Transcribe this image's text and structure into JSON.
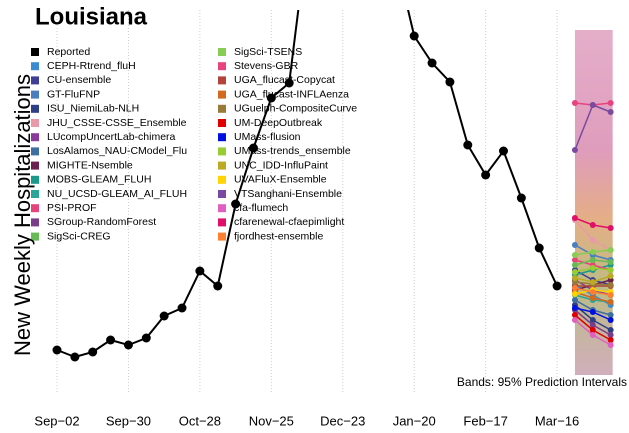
{
  "chart_data": {
    "type": "line",
    "title": "Louisiana",
    "y_label": "New Weekly Hospitalizations",
    "annotation": "Bands: 95% Prediction Intervals",
    "categories": [
      "Sep−02",
      null,
      null,
      null,
      "Sep−30",
      null,
      null,
      null,
      "Oct−28",
      null,
      null,
      null,
      "Nov−25",
      null,
      null,
      null,
      "Dec−23",
      null,
      null,
      null,
      "Jan−20",
      null,
      null,
      null,
      "Feb−17",
      null,
      null,
      null,
      "Mar−16",
      null,
      null,
      null
    ],
    "ylim": [
      0,
      370
    ],
    "grid": true,
    "prediction_band": {
      "lower": 5,
      "upper": 350
    },
    "series": [
      {
        "name": "Reported",
        "color": "#000000",
        "values": [
          30,
          23,
          28,
          40,
          35,
          42,
          64,
          72,
          109,
          94,
          176,
          232,
          282,
          297,
          440,
          null,
          null,
          null,
          null,
          420,
          344,
          317,
          298,
          235,
          205,
          229,
          182,
          132,
          94,
          null,
          null,
          null
        ]
      },
      {
        "name": "CEPH-Rtrend_fluH",
        "color": "#3a8bd0",
        "values": [
          null,
          null,
          null,
          null,
          null,
          null,
          null,
          null,
          null,
          null,
          null,
          null,
          null,
          null,
          null,
          null,
          null,
          null,
          null,
          null,
          null,
          null,
          null,
          null,
          null,
          null,
          null,
          null,
          null,
          95,
          85,
          75
        ]
      },
      {
        "name": "CU-ensemble",
        "color": "#3f3f9a",
        "values": [
          null,
          null,
          null,
          null,
          null,
          null,
          null,
          null,
          null,
          null,
          null,
          null,
          null,
          null,
          null,
          null,
          null,
          null,
          null,
          null,
          null,
          null,
          null,
          null,
          null,
          null,
          null,
          null,
          null,
          110,
          100,
          95
        ]
      },
      {
        "name": "GT-FluFNP",
        "color": "#4a7fbf",
        "values": [
          null,
          null,
          null,
          null,
          null,
          null,
          null,
          null,
          null,
          null,
          null,
          null,
          null,
          null,
          null,
          null,
          null,
          null,
          null,
          null,
          null,
          null,
          null,
          null,
          null,
          null,
          null,
          null,
          null,
          135,
          125,
          120
        ]
      },
      {
        "name": "ISU_NiemiLab-NLH",
        "color": "#2e3f86",
        "values": [
          null,
          null,
          null,
          null,
          null,
          null,
          null,
          null,
          null,
          null,
          null,
          null,
          null,
          null,
          null,
          null,
          null,
          null,
          null,
          null,
          null,
          null,
          null,
          null,
          null,
          null,
          null,
          null,
          null,
          75,
          60,
          50
        ]
      },
      {
        "name": "JHU_CSSE-CSSE_Ensemble",
        "color": "#e89aa8",
        "values": [
          null,
          null,
          null,
          null,
          null,
          null,
          null,
          null,
          null,
          null,
          null,
          null,
          null,
          null,
          null,
          null,
          null,
          null,
          null,
          null,
          null,
          null,
          null,
          null,
          null,
          null,
          null,
          null,
          null,
          160,
          140,
          130
        ]
      },
      {
        "name": "LUcompUncertLab-chimera",
        "color": "#8a3a9a",
        "values": [
          null,
          null,
          null,
          null,
          null,
          null,
          null,
          null,
          null,
          null,
          null,
          null,
          null,
          null,
          null,
          null,
          null,
          null,
          null,
          null,
          null,
          null,
          null,
          null,
          null,
          null,
          null,
          null,
          null,
          100,
          90,
          85
        ]
      },
      {
        "name": "LosAlamos_NAU-CModel_Flu",
        "color": "#3f6fa0",
        "values": [
          null,
          null,
          null,
          null,
          null,
          null,
          null,
          null,
          null,
          null,
          null,
          null,
          null,
          null,
          null,
          null,
          null,
          null,
          null,
          null,
          null,
          null,
          null,
          null,
          null,
          null,
          null,
          null,
          null,
          80,
          70,
          65
        ]
      },
      {
        "name": "MIGHTE-Nsemble",
        "color": "#6a1f4f",
        "values": [
          null,
          null,
          null,
          null,
          null,
          null,
          null,
          null,
          null,
          null,
          null,
          null,
          null,
          null,
          null,
          null,
          null,
          null,
          null,
          null,
          null,
          null,
          null,
          null,
          null,
          null,
          null,
          null,
          null,
          90,
          95,
          100
        ]
      },
      {
        "name": "MOBS-GLEAM_FLUH",
        "color": "#199a8a",
        "values": [
          null,
          null,
          null,
          null,
          null,
          null,
          null,
          null,
          null,
          null,
          null,
          null,
          null,
          null,
          null,
          null,
          null,
          null,
          null,
          null,
          null,
          null,
          null,
          null,
          null,
          null,
          null,
          null,
          null,
          105,
          110,
          115
        ]
      },
      {
        "name": "NU_UCSD-GLEAM_AI_FLUH",
        "color": "#2aa59a",
        "values": [
          null,
          null,
          null,
          null,
          null,
          null,
          null,
          null,
          null,
          null,
          null,
          null,
          null,
          null,
          null,
          null,
          null,
          null,
          null,
          null,
          null,
          null,
          null,
          null,
          null,
          null,
          null,
          null,
          null,
          85,
          80,
          78
        ]
      },
      {
        "name": "PSI-PROF",
        "color": "#e8447c",
        "values": [
          null,
          null,
          null,
          null,
          null,
          null,
          null,
          null,
          null,
          null,
          null,
          null,
          null,
          null,
          null,
          null,
          null,
          null,
          null,
          null,
          null,
          null,
          null,
          null,
          null,
          null,
          null,
          null,
          null,
          120,
          115,
          110
        ]
      },
      {
        "name": "SGroup-RandomForest",
        "color": "#7a3d8a",
        "values": [
          null,
          null,
          null,
          null,
          null,
          null,
          null,
          null,
          null,
          null,
          null,
          null,
          null,
          null,
          null,
          null,
          null,
          null,
          null,
          null,
          null,
          null,
          null,
          null,
          null,
          null,
          null,
          null,
          null,
          70,
          55,
          45
        ]
      },
      {
        "name": "SigSci-CREG",
        "color": "#66bb55",
        "values": [
          null,
          null,
          null,
          null,
          null,
          null,
          null,
          null,
          null,
          null,
          null,
          null,
          null,
          null,
          null,
          null,
          null,
          null,
          null,
          null,
          null,
          null,
          null,
          null,
          null,
          null,
          null,
          null,
          null,
          115,
          120,
          118
        ]
      },
      {
        "name": "SigSci-TSENS",
        "color": "#88cc55",
        "values": [
          null,
          null,
          null,
          null,
          null,
          null,
          null,
          null,
          null,
          null,
          null,
          null,
          null,
          null,
          null,
          null,
          null,
          null,
          null,
          null,
          null,
          null,
          null,
          null,
          null,
          null,
          null,
          null,
          null,
          125,
          128,
          130
        ]
      },
      {
        "name": "Stevens-GBR",
        "color": "#e8437e",
        "values": [
          null,
          null,
          null,
          null,
          null,
          null,
          null,
          null,
          null,
          null,
          null,
          null,
          null,
          null,
          null,
          null,
          null,
          null,
          null,
          null,
          null,
          null,
          null,
          null,
          null,
          null,
          null,
          null,
          null,
          277,
          275,
          277
        ]
      },
      {
        "name": "UGA_flucast-Copycat",
        "color": "#b2443a",
        "values": [
          null,
          null,
          null,
          null,
          null,
          null,
          null,
          null,
          null,
          null,
          null,
          null,
          null,
          null,
          null,
          null,
          null,
          null,
          null,
          null,
          null,
          null,
          null,
          null,
          null,
          null,
          null,
          null,
          null,
          94,
          94,
          94
        ]
      },
      {
        "name": "UGA_flucast-INFLAenza",
        "color": "#d2691e",
        "values": [
          null,
          null,
          null,
          null,
          null,
          null,
          null,
          null,
          null,
          null,
          null,
          null,
          null,
          null,
          null,
          null,
          null,
          null,
          null,
          null,
          null,
          null,
          null,
          null,
          null,
          null,
          null,
          null,
          null,
          88,
          82,
          78
        ]
      },
      {
        "name": "UGuelph-CompositeCurve",
        "color": "#9a7a3a",
        "values": [
          null,
          null,
          null,
          null,
          null,
          null,
          null,
          null,
          null,
          null,
          null,
          null,
          null,
          null,
          null,
          null,
          null,
          null,
          null,
          null,
          null,
          null,
          null,
          null,
          null,
          null,
          null,
          null,
          null,
          98,
          96,
          95
        ]
      },
      {
        "name": "UM-DeepOutbreak",
        "color": "#e00000",
        "values": [
          null,
          null,
          null,
          null,
          null,
          null,
          null,
          null,
          null,
          null,
          null,
          null,
          null,
          null,
          null,
          null,
          null,
          null,
          null,
          null,
          null,
          null,
          null,
          null,
          null,
          null,
          null,
          null,
          null,
          65,
          50,
          40
        ]
      },
      {
        "name": "UMass-flusion",
        "color": "#0010e0",
        "values": [
          null,
          null,
          null,
          null,
          null,
          null,
          null,
          null,
          null,
          null,
          null,
          null,
          null,
          null,
          null,
          null,
          null,
          null,
          null,
          null,
          null,
          null,
          null,
          null,
          null,
          null,
          null,
          null,
          null,
          72,
          68,
          60
        ]
      },
      {
        "name": "UMass-trends_ensemble",
        "color": "#99cc33",
        "values": [
          null,
          null,
          null,
          null,
          null,
          null,
          null,
          null,
          null,
          null,
          null,
          null,
          null,
          null,
          null,
          null,
          null,
          null,
          null,
          null,
          null,
          null,
          null,
          null,
          null,
          null,
          null,
          null,
          null,
          108,
          112,
          110
        ]
      },
      {
        "name": "UNC_IDD-InfluPaint",
        "color": "#bbaa22",
        "values": [
          null,
          null,
          null,
          null,
          null,
          null,
          null,
          null,
          null,
          null,
          null,
          null,
          null,
          null,
          null,
          null,
          null,
          null,
          null,
          null,
          null,
          null,
          null,
          null,
          null,
          null,
          null,
          null,
          null,
          102,
          98,
          104
        ]
      },
      {
        "name": "UVAFluX-Ensemble",
        "color": "#ffd400",
        "values": [
          null,
          null,
          null,
          null,
          null,
          null,
          null,
          null,
          null,
          null,
          null,
          null,
          null,
          null,
          null,
          null,
          null,
          null,
          null,
          null,
          null,
          null,
          null,
          null,
          null,
          null,
          null,
          null,
          null,
          86,
          90,
          88
        ]
      },
      {
        "name": "VTSanghani-Ensemble",
        "color": "#7a4aa0",
        "values": [
          null,
          null,
          null,
          null,
          null,
          null,
          null,
          null,
          null,
          null,
          null,
          null,
          null,
          null,
          null,
          null,
          null,
          null,
          null,
          null,
          null,
          null,
          null,
          null,
          null,
          null,
          null,
          null,
          null,
          230,
          275,
          268
        ]
      },
      {
        "name": "cfa-flumech",
        "color": "#e060c0",
        "values": [
          null,
          null,
          null,
          null,
          null,
          null,
          null,
          null,
          null,
          null,
          null,
          null,
          null,
          null,
          null,
          null,
          null,
          null,
          null,
          null,
          null,
          null,
          null,
          null,
          null,
          null,
          null,
          null,
          null,
          60,
          45,
          35
        ]
      },
      {
        "name": "cfarenewal-cfaepimlight",
        "color": "#e0106a",
        "values": [
          null,
          null,
          null,
          null,
          null,
          null,
          null,
          null,
          null,
          null,
          null,
          null,
          null,
          null,
          null,
          null,
          null,
          null,
          null,
          null,
          null,
          null,
          null,
          null,
          null,
          null,
          null,
          null,
          null,
          162,
          155,
          152
        ]
      },
      {
        "name": "fjordhest-ensemble",
        "color": "#ff7f30",
        "values": [
          null,
          null,
          null,
          null,
          null,
          null,
          null,
          null,
          null,
          null,
          null,
          null,
          null,
          null,
          null,
          null,
          null,
          null,
          null,
          null,
          null,
          null,
          null,
          null,
          null,
          null,
          null,
          null,
          null,
          92,
          88,
          85
        ]
      }
    ]
  }
}
